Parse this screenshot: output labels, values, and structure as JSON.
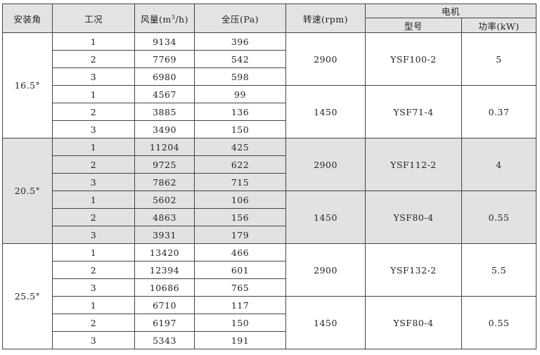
{
  "headers": {
    "angle": "安装角",
    "condition": "工况",
    "airflow": "风量(m",
    "airflow_sup": "3",
    "airflow_unit": "/h)",
    "pressure": "全压(Pa)",
    "speed": "转速(rpm)",
    "motor": "电机",
    "model": "型号",
    "power": "功率(kW)"
  },
  "groups": [
    {
      "angle": "16.5°",
      "sub": [
        {
          "speed": "2900",
          "model": "YSF100-2",
          "power": "5",
          "rows": [
            [
              "1",
              "9134",
              "396"
            ],
            [
              "2",
              "7769",
              "542"
            ],
            [
              "3",
              "6980",
              "598"
            ]
          ]
        },
        {
          "speed": "1450",
          "model": "YSF71-4",
          "power": "0.37",
          "rows": [
            [
              "1",
              "4567",
              "99"
            ],
            [
              "2",
              "3885",
              "136"
            ],
            [
              "3",
              "3490",
              "150"
            ]
          ]
        }
      ]
    },
    {
      "angle": "20.5°",
      "sub": [
        {
          "speed": "2900",
          "model": "YSF112-2",
          "power": "4",
          "rows": [
            [
              "1",
              "11204",
              "425"
            ],
            [
              "2",
              "9725",
              "622"
            ],
            [
              "3",
              "7862",
              "715"
            ]
          ]
        },
        {
          "speed": "1450",
          "model": "YSF80-4",
          "power": "0.55",
          "rows": [
            [
              "1",
              "5602",
              "106"
            ],
            [
              "2",
              "4863",
              "156"
            ],
            [
              "3",
              "3931",
              "179"
            ]
          ]
        }
      ]
    },
    {
      "angle": "25.5°",
      "sub": [
        {
          "speed": "2900",
          "model": "YSF132-2",
          "power": "5.5",
          "rows": [
            [
              "1",
              "13420",
              "466"
            ],
            [
              "2",
              "12394",
              "601"
            ],
            [
              "3",
              "10686",
              "765"
            ]
          ]
        },
        {
          "speed": "1450",
          "model": "YSF80-4",
          "power": "0.55",
          "rows": [
            [
              "1",
              "6710",
              "117"
            ],
            [
              "2",
              "6197",
              "150"
            ],
            [
              "3",
              "5343",
              "191"
            ]
          ]
        }
      ]
    }
  ]
}
